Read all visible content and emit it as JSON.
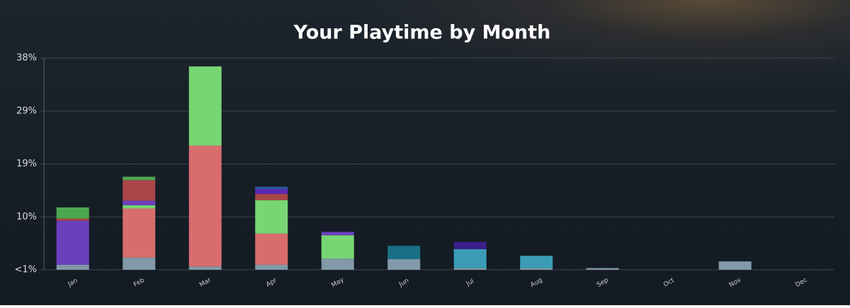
{
  "chart_data": {
    "type": "stacked_bar",
    "title": "Your Playtime by Month",
    "categories": [
      "Jan",
      "Feb",
      "Mar",
      "Apr",
      "May",
      "Jun",
      "Jul",
      "Aug",
      "Sep",
      "Oct",
      "Nov",
      "Dec"
    ],
    "series": [
      {
        "color": "#8299a8",
        "values": [
          0.9,
          2.2,
          0.6,
          0.9,
          2.0,
          1.9,
          0.3,
          0.3,
          0.3,
          0,
          1.5,
          0
        ]
      },
      {
        "color": "#6b40bf",
        "values": [
          7.9,
          0,
          0,
          0,
          0,
          0,
          0,
          0,
          0,
          0,
          0,
          0
        ]
      },
      {
        "color": "#d86d6e",
        "values": [
          0,
          8.8,
          21.7,
          5.6,
          0,
          0,
          0,
          0,
          0,
          0,
          0,
          0
        ]
      },
      {
        "color": "#77d672",
        "values": [
          0,
          0.6,
          14.2,
          6.0,
          4.2,
          0,
          0,
          0,
          0,
          0,
          0,
          0
        ]
      },
      {
        "color": "#6b40bf",
        "values": [
          0,
          0.8,
          0,
          0,
          0.6,
          0,
          0,
          0,
          0,
          0,
          0,
          0
        ]
      },
      {
        "color": "#a84647",
        "values": [
          0.4,
          3.7,
          0,
          1.1,
          0,
          0,
          0,
          0,
          0,
          0,
          0,
          0
        ]
      },
      {
        "color": "#5a2bb0",
        "values": [
          0,
          0,
          0,
          0.9,
          0,
          0,
          0,
          0,
          0,
          0,
          0,
          0
        ]
      },
      {
        "color": "#4ca84f",
        "values": [
          2.0,
          0.6,
          0,
          0,
          0,
          0,
          0,
          0,
          0,
          0,
          0,
          0
        ]
      },
      {
        "color": "#2a5ca0",
        "values": [
          0,
          0,
          0,
          0.4,
          0,
          0,
          0,
          0,
          0,
          0,
          0,
          0
        ]
      },
      {
        "color": "#1a6f86",
        "values": [
          0,
          0,
          0,
          0,
          0,
          2.4,
          0,
          0,
          0,
          0,
          0,
          0
        ]
      },
      {
        "color": "#3a9cb6",
        "values": [
          0,
          0,
          0,
          0,
          0,
          0,
          3.4,
          2.2,
          0,
          0,
          0,
          0
        ]
      },
      {
        "color": "#3b1f8c",
        "values": [
          0,
          0,
          0,
          0,
          0,
          0,
          1.3,
          0,
          0,
          0,
          0,
          0
        ]
      }
    ],
    "ylim": [
      0,
      38
    ],
    "yticks": [
      {
        "value": 0,
        "label": "<1%"
      },
      {
        "value": 9.5,
        "label": "10%"
      },
      {
        "value": 19,
        "label": "19%"
      },
      {
        "value": 28.5,
        "label": "29%"
      },
      {
        "value": 38,
        "label": "38%"
      }
    ],
    "grid": true
  }
}
